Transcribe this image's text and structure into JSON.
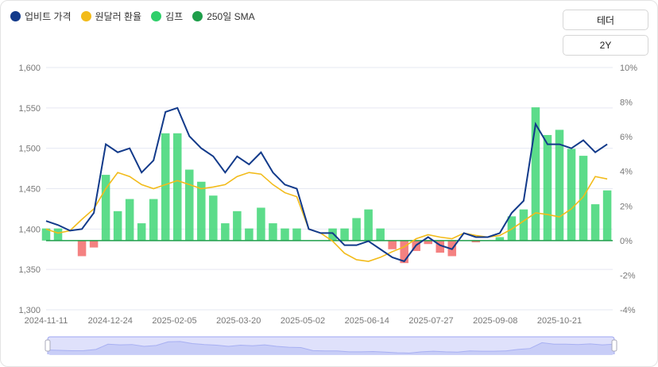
{
  "legend": [
    {
      "label": "업비트 가격",
      "color": "#123a8a"
    },
    {
      "label": "원달러 환율",
      "color": "#f2bb1a"
    },
    {
      "label": "김프",
      "color": "#2fcf6a"
    },
    {
      "label": "250일 SMA",
      "color": "#1e9e4a"
    }
  ],
  "controls": {
    "asset_label": "테더",
    "range_label": "2Y"
  },
  "chart_data": {
    "type": "line",
    "x_start": "2024-11-11",
    "x_step_days": 8,
    "x_ticks": [
      "2024-11-11",
      "2024-12-24",
      "2025-02-05",
      "2025-03-20",
      "2025-05-02",
      "2025-06-14",
      "2025-07-27",
      "2025-09-08",
      "2025-10-21"
    ],
    "y_left": {
      "range": [
        1300,
        1600
      ],
      "ticks": [
        "1,300",
        "1,350",
        "1,400",
        "1,450",
        "1,500",
        "1,550",
        "1,600"
      ]
    },
    "y_right": {
      "range": [
        -4,
        10
      ],
      "ticks": [
        "-4%",
        "-2%",
        "0%",
        "2%",
        "4%",
        "6%",
        "8%",
        "10%"
      ]
    },
    "grid": true,
    "legend_position": "top-left",
    "series": [
      {
        "name": "업비트 가격",
        "axis": "left",
        "type": "line",
        "values": [
          1410,
          1405,
          1398,
          1400,
          1420,
          1505,
          1495,
          1500,
          1470,
          1485,
          1545,
          1550,
          1515,
          1500,
          1490,
          1470,
          1490,
          1480,
          1495,
          1470,
          1455,
          1450,
          1400,
          1395,
          1395,
          1380,
          1380,
          1385,
          1375,
          1365,
          1360,
          1380,
          1390,
          1380,
          1375,
          1395,
          1390,
          1390,
          1395,
          1420,
          1435,
          1530,
          1505,
          1505,
          1500,
          1510,
          1495,
          1505
        ]
      },
      {
        "name": "원달러 환율",
        "axis": "left",
        "type": "line",
        "values": [
          1400,
          1395,
          1398,
          1412,
          1425,
          1450,
          1470,
          1465,
          1455,
          1450,
          1455,
          1460,
          1455,
          1450,
          1452,
          1455,
          1465,
          1470,
          1468,
          1455,
          1445,
          1440,
          1400,
          1395,
          1385,
          1370,
          1362,
          1360,
          1365,
          1372,
          1378,
          1388,
          1393,
          1390,
          1388,
          1395,
          1392,
          1390,
          1392,
          1400,
          1410,
          1420,
          1418,
          1415,
          1425,
          1440,
          1465,
          1462
        ]
      },
      {
        "name": "김프",
        "axis": "right",
        "type": "bar",
        "values": [
          0.7,
          0.7,
          0.0,
          -0.9,
          -0.4,
          3.8,
          1.7,
          2.4,
          1.0,
          2.4,
          6.2,
          6.2,
          4.1,
          3.4,
          2.6,
          1.0,
          1.7,
          0.7,
          1.9,
          1.0,
          0.7,
          0.7,
          0.0,
          0.0,
          0.7,
          0.7,
          1.3,
          1.8,
          0.7,
          -0.5,
          -1.3,
          -0.6,
          -0.2,
          -0.7,
          -0.9,
          0.0,
          -0.1,
          0.0,
          0.2,
          1.4,
          1.8,
          7.7,
          6.1,
          6.4,
          5.3,
          4.9,
          2.1,
          2.9
        ]
      }
    ]
  }
}
